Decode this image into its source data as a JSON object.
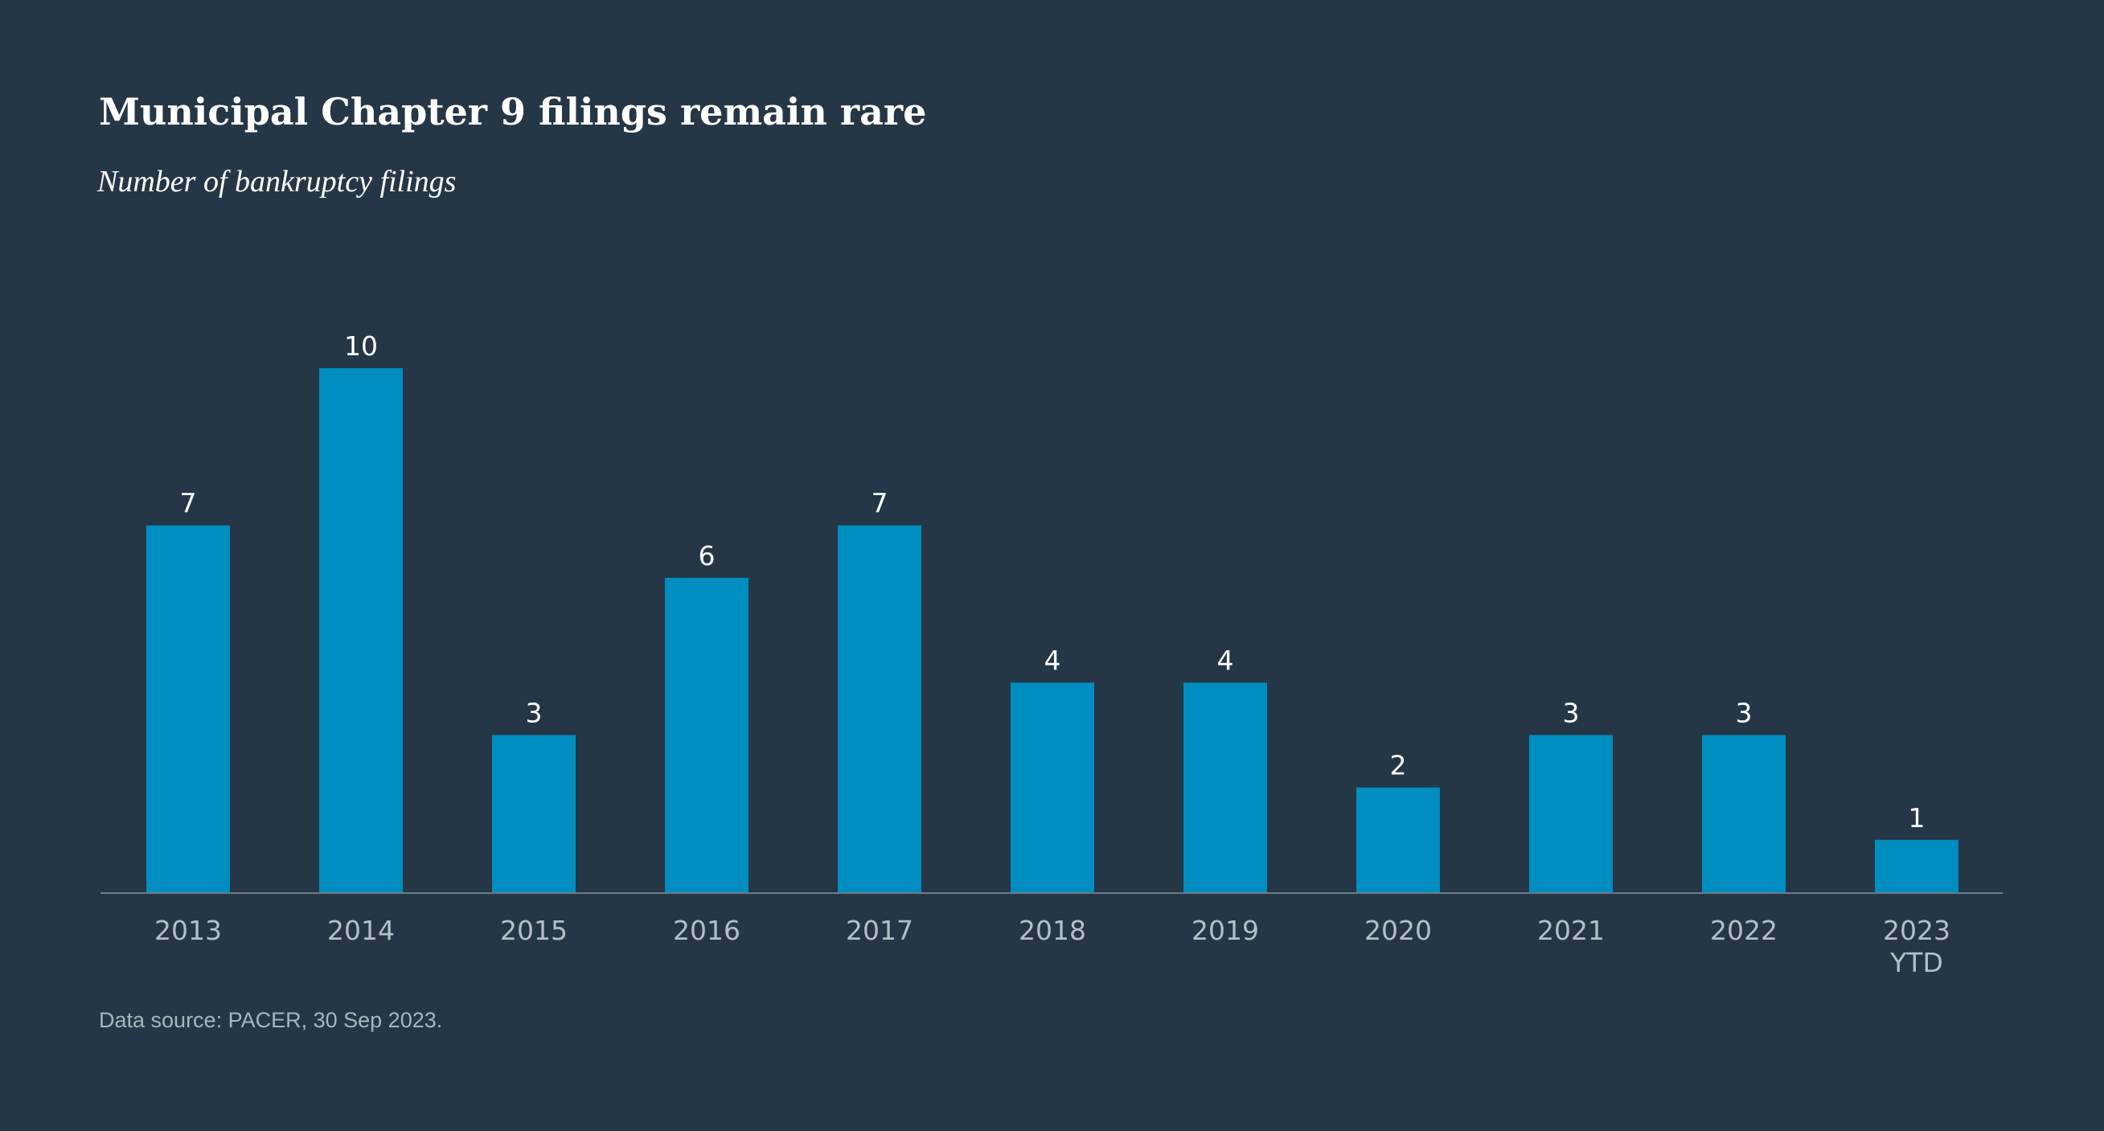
{
  "title": "Municipal Chapter 9 filings remain rare",
  "subtitle": "Number of bankruptcy filings",
  "source": "Data source: PACER, 30 Sep 2023.",
  "colors": {
    "background": "#253746",
    "bar": "#008dbf",
    "axis": "#6b7b88"
  },
  "chart_data": {
    "type": "bar",
    "categories": [
      "2013",
      "2014",
      "2015",
      "2016",
      "2017",
      "2018",
      "2019",
      "2020",
      "2021",
      "2022",
      "2023\nYTD"
    ],
    "values": [
      7,
      10,
      3,
      6,
      7,
      4,
      4,
      2,
      3,
      3,
      1
    ],
    "title": "Municipal Chapter 9 filings remain rare",
    "subtitle": "Number of bankruptcy filings",
    "xlabel": "",
    "ylabel": "",
    "ylim": [
      0,
      10
    ],
    "grid": false,
    "data_labels": true,
    "legend": "none"
  }
}
